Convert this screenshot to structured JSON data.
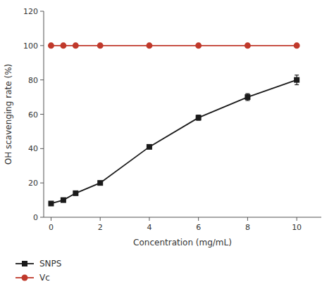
{
  "chart_data": {
    "type": "line",
    "x": [
      0,
      0.5,
      1,
      2,
      4,
      6,
      8,
      10
    ],
    "series": [
      {
        "name": "SNPS",
        "color": "#1a1a1a",
        "marker": "square",
        "values": [
          8,
          10,
          14,
          20,
          41,
          58,
          70,
          80
        ],
        "errors": [
          0.0,
          0.0,
          0.0,
          0.0,
          0.0,
          1.5,
          2.0,
          2.8
        ]
      },
      {
        "name": "Vc",
        "color": "#c0392b",
        "marker": "circle",
        "values": [
          100,
          100,
          100,
          100,
          100,
          100,
          100,
          100
        ],
        "errors": [
          0.0,
          0.0,
          0.0,
          0.0,
          0.0,
          0.0,
          0.0,
          0.0
        ]
      }
    ],
    "xlabel": "Concentration (mg/mL)",
    "ylabel": "OH scavenging rate (%)",
    "xlim": [
      -0.3,
      11
    ],
    "ylim": [
      0,
      120
    ],
    "xticks": [
      0,
      2,
      4,
      6,
      8,
      10
    ],
    "yticks": [
      0,
      20,
      40,
      60,
      80,
      100,
      120
    ],
    "grid": false,
    "legend": "bottom"
  }
}
